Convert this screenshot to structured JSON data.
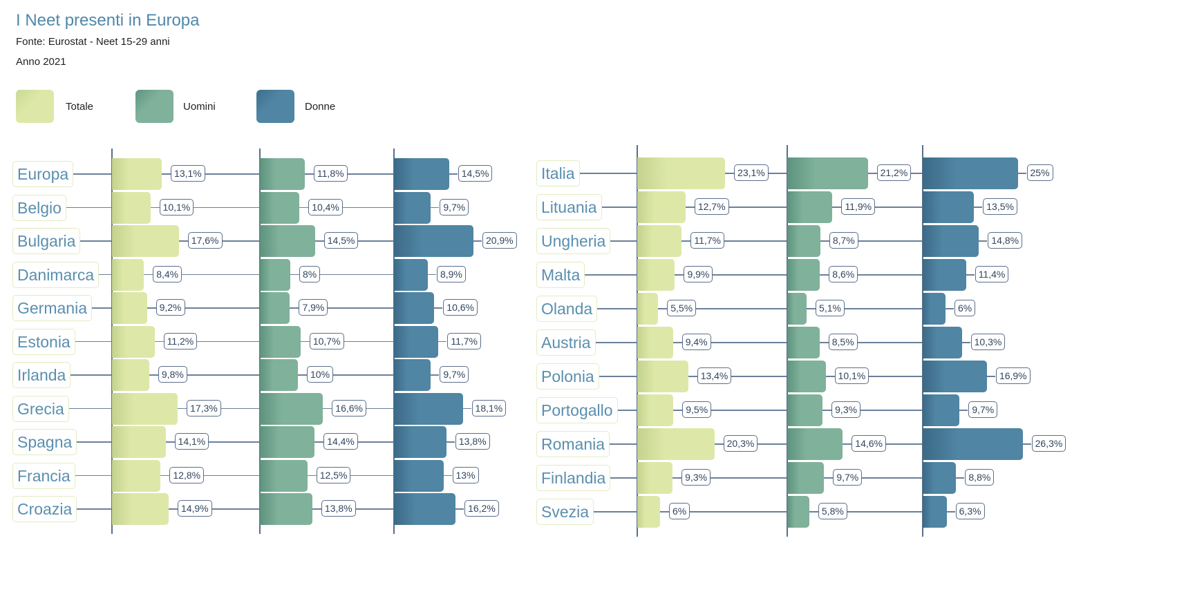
{
  "header": {
    "title": "I Neet presenti in Europa",
    "source": "Fonte: Eurostat - Neet 15-29 anni",
    "year": "Anno 2021"
  },
  "chart_data": {
    "type": "bar",
    "title": "I Neet presenti in Europa",
    "unit": "%",
    "legend": {
      "placement": "top-left",
      "entries": [
        "Totale",
        "Uomini",
        "Donne"
      ]
    },
    "colors": {
      "Totale": "#dde8a8",
      "Uomini": "#80b19b",
      "Donne": "#5085a3"
    },
    "panels": [
      {
        "categories": [
          "Europa",
          "Belgio",
          "Bulgaria",
          "Danimarca",
          "Germania",
          "Estonia",
          "Irlanda",
          "Grecia",
          "Spagna",
          "Francia",
          "Croazia"
        ],
        "series": [
          {
            "name": "Totale",
            "values": [
              13.1,
              10.1,
              17.6,
              8.4,
              9.2,
              11.2,
              9.8,
              17.3,
              14.1,
              12.8,
              14.9
            ],
            "labels": [
              "13,1%",
              "10,1%",
              "17,6%",
              "8,4%",
              "9,2%",
              "11,2%",
              "9,8%",
              "17,3%",
              "14,1%",
              "12,8%",
              "14,9%"
            ]
          },
          {
            "name": "Uomini",
            "values": [
              11.8,
              10.4,
              14.5,
              8,
              7.9,
              10.7,
              10,
              16.6,
              14.4,
              12.5,
              13.8
            ],
            "labels": [
              "11,8%",
              "10,4%",
              "14,5%",
              "8%",
              "7,9%",
              "10,7%",
              "10%",
              "16,6%",
              "14,4%",
              "12,5%",
              "13,8%"
            ]
          },
          {
            "name": "Donne",
            "values": [
              14.5,
              9.7,
              20.9,
              8.9,
              10.6,
              11.7,
              9.7,
              18.1,
              13.8,
              13,
              16.2
            ],
            "labels": [
              "14,5%",
              "9,7%",
              "20,9%",
              "8,9%",
              "10,6%",
              "11,7%",
              "9,7%",
              "18,1%",
              "13,8%",
              "13%",
              "16,2%"
            ]
          }
        ]
      },
      {
        "categories": [
          "Italia",
          "Lituania",
          "Ungheria",
          "Malta",
          "Olanda",
          "Austria",
          "Polonia",
          "Portogallo",
          "Romania",
          "Finlandia",
          "Svezia"
        ],
        "series": [
          {
            "name": "Totale",
            "values": [
              23.1,
              12.7,
              11.7,
              9.9,
              5.5,
              9.4,
              13.4,
              9.5,
              20.3,
              9.3,
              6
            ],
            "labels": [
              "23,1%",
              "12,7%",
              "11,7%",
              "9,9%",
              "5,5%",
              "9,4%",
              "13,4%",
              "9,5%",
              "20,3%",
              "9,3%",
              "6%"
            ]
          },
          {
            "name": "Uomini",
            "values": [
              21.2,
              11.9,
              8.7,
              8.6,
              5.1,
              8.5,
              10.1,
              9.3,
              14.6,
              9.7,
              5.8
            ],
            "labels": [
              "21,2%",
              "11,9%",
              "8,7%",
              "8,6%",
              "5,1%",
              "8,5%",
              "10,1%",
              "9,3%",
              "14,6%",
              "9,7%",
              "5,8%"
            ]
          },
          {
            "name": "Donne",
            "values": [
              25,
              13.5,
              14.8,
              11.4,
              6,
              10.3,
              16.9,
              9.7,
              26.3,
              8.8,
              6.3
            ],
            "labels": [
              "25%",
              "13,5%",
              "14,8%",
              "11,4%",
              "6%",
              "10,3%",
              "16,9%",
              "9,7%",
              "26,3%",
              "8,8%",
              "6,3%"
            ]
          }
        ]
      }
    ]
  }
}
